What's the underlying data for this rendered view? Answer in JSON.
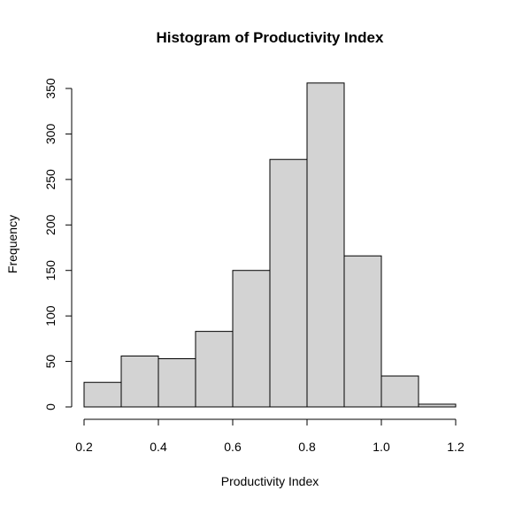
{
  "chart_data": {
    "type": "bar",
    "title": "Histogram of Productivity Index",
    "xlabel": "Productivity Index",
    "ylabel": "Frequency",
    "bins": [
      {
        "start": 0.2,
        "end": 0.3,
        "count": 27
      },
      {
        "start": 0.3,
        "end": 0.4,
        "count": 56
      },
      {
        "start": 0.4,
        "end": 0.5,
        "count": 53
      },
      {
        "start": 0.5,
        "end": 0.6,
        "count": 83
      },
      {
        "start": 0.6,
        "end": 0.7,
        "count": 150
      },
      {
        "start": 0.7,
        "end": 0.8,
        "count": 272
      },
      {
        "start": 0.8,
        "end": 0.9,
        "count": 356
      },
      {
        "start": 0.9,
        "end": 1.0,
        "count": 166
      },
      {
        "start": 1.0,
        "end": 1.1,
        "count": 34
      },
      {
        "start": 1.1,
        "end": 1.2,
        "count": 3
      }
    ],
    "x_ticks": [
      "0.2",
      "0.4",
      "0.6",
      "0.8",
      "1.0",
      "1.2"
    ],
    "x_tick_values": [
      0.2,
      0.4,
      0.6,
      0.8,
      1.0,
      1.2
    ],
    "y_ticks": [
      "0",
      "50",
      "100",
      "150",
      "200",
      "250",
      "300",
      "350"
    ],
    "y_tick_values": [
      0,
      50,
      100,
      150,
      200,
      250,
      300,
      350
    ],
    "xlim": [
      0.2,
      1.2
    ],
    "ylim": [
      0,
      350
    ],
    "grid": false,
    "colors": {
      "bar_fill": "#d3d3d3",
      "bar_stroke": "#000000"
    }
  }
}
